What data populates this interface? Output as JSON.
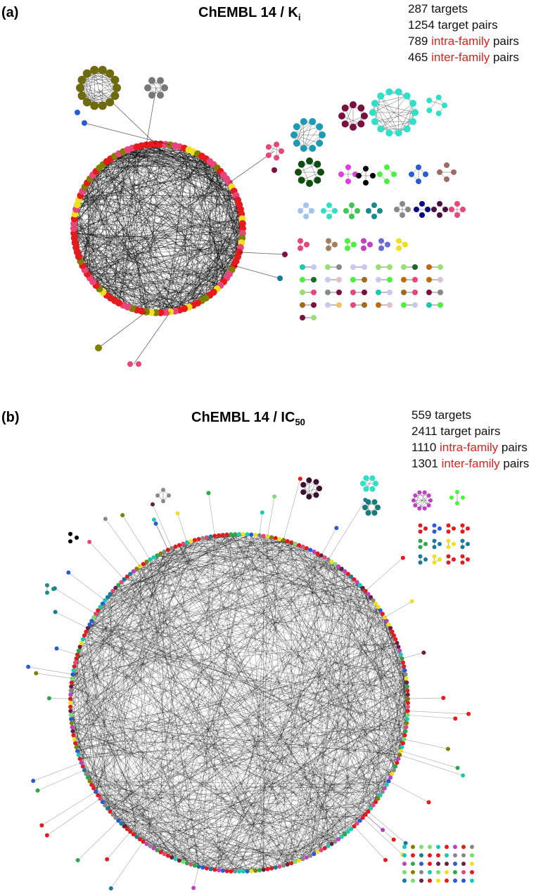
{
  "panels": [
    {
      "label": "(a)",
      "title": {
        "main": "ChEMBL 14 / K",
        "subscript": "i"
      },
      "stats": {
        "targets": "287 targets",
        "pairs": "1254 target pairs",
        "intra": {
          "count": "789",
          "highlight": "intra-family",
          "suffix": "pairs"
        },
        "inter": {
          "count": "465",
          "highlight": "inter-family",
          "suffix": "pairs"
        }
      }
    },
    {
      "label": "(b)",
      "title": {
        "main": "ChEMBL 14 / IC",
        "subscript": "50"
      },
      "stats": {
        "targets": "559 targets",
        "pairs": "2411 target pairs",
        "intra": {
          "count": "1110",
          "highlight": "intra-family",
          "suffix": "pairs"
        },
        "inter": {
          "count": "1301",
          "highlight": "inter-family",
          "suffix": "pairs"
        }
      }
    }
  ]
}
